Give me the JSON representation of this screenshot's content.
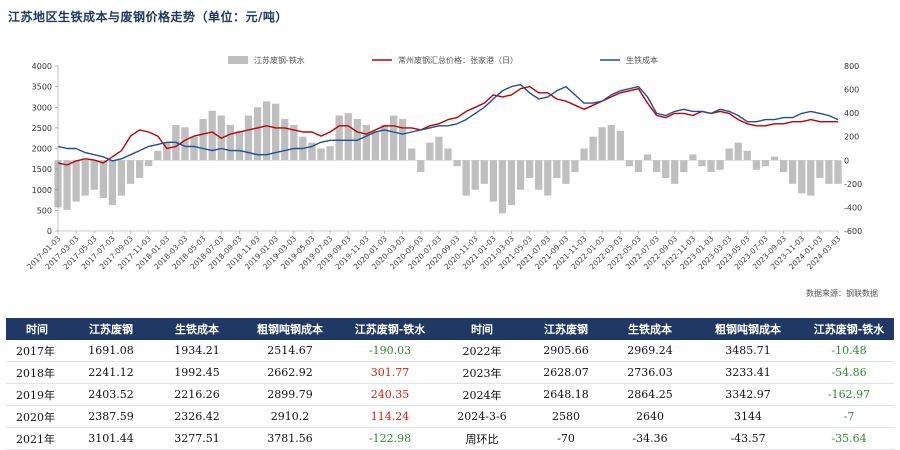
{
  "title": "江苏地区生铁成本与废钢价格走势（单位：元/吨）",
  "source": "数据来源：钢联数据",
  "chart_data": {
    "type": "bar+line",
    "legend": [
      "江苏废钢-铁水",
      "常州废钢汇总价格：张家港（日）",
      "生铁成本"
    ],
    "legend_placement": "top",
    "y_left_ticks": [
      "0",
      "500",
      "1000",
      "1500",
      "2000",
      "2500",
      "3000",
      "3500",
      "4000"
    ],
    "y_left_range": [
      0,
      4000
    ],
    "y_right_ticks": [
      "-600",
      "-400",
      "-200",
      "0",
      "200",
      "400",
      "600",
      "800"
    ],
    "y_right_range": [
      -600,
      800
    ],
    "x_ticks": [
      "2017-01-03",
      "2017-03-03",
      "2017-05-03",
      "2017-07-03",
      "2017-09-03",
      "2017-11-03",
      "2018-01-03",
      "2018-03-03",
      "2018-05-03",
      "2018-07-03",
      "2018-09-03",
      "2018-11-03",
      "2019-01-03",
      "2019-03-03",
      "2019-05-03",
      "2019-07-03",
      "2019-09-03",
      "2019-11-03",
      "2020-01-03",
      "2020-03-03",
      "2020-05-03",
      "2020-07-03",
      "2020-09-03",
      "2020-11-03",
      "2021-01-03",
      "2021-03-03",
      "2021-05-03",
      "2021-07-03",
      "2021-09-03",
      "2021-11-03",
      "2022-01-03",
      "2022-03-03",
      "2022-05-03",
      "2022-07-03",
      "2022-09-03",
      "2022-11-03",
      "2023-01-03",
      "2023-03-03",
      "2023-05-03",
      "2023-07-03",
      "2023-09-03",
      "2023-11-03",
      "2024-01-03",
      "2024-03-03"
    ],
    "x_months": [
      0,
      1,
      2,
      3,
      4,
      5,
      6,
      7,
      8,
      9,
      10,
      11,
      12,
      13,
      14,
      15,
      16,
      17,
      18,
      19,
      20,
      21,
      22,
      23,
      24,
      25,
      26,
      27,
      28,
      29,
      30,
      31,
      32,
      33,
      34,
      35,
      36,
      37,
      38,
      39,
      40,
      41,
      42,
      43,
      44,
      45,
      46,
      47,
      48,
      49,
      50,
      51,
      52,
      53,
      54,
      55,
      56,
      57,
      58,
      59,
      60,
      61,
      62,
      63,
      64,
      65,
      66,
      67,
      68,
      69,
      70,
      71,
      72,
      73,
      74,
      75,
      76,
      77,
      78,
      79,
      80,
      81,
      82,
      83,
      84,
      85,
      86
    ],
    "series": [
      {
        "name": "江苏废钢-铁水",
        "type": "bar",
        "axis": "right",
        "color": "#bfbfbf",
        "values": [
          -400,
          -420,
          -350,
          -300,
          -250,
          -320,
          -380,
          -300,
          -200,
          -150,
          -50,
          80,
          150,
          300,
          280,
          200,
          350,
          420,
          380,
          300,
          250,
          380,
          450,
          500,
          480,
          350,
          300,
          200,
          150,
          100,
          120,
          380,
          400,
          350,
          300,
          250,
          300,
          380,
          350,
          100,
          -100,
          150,
          200,
          100,
          -50,
          -300,
          -250,
          -200,
          -350,
          -450,
          -380,
          -250,
          -150,
          -250,
          -300,
          -150,
          -200,
          -100,
          100,
          200,
          280,
          300,
          250,
          -50,
          -100,
          50,
          -100,
          -150,
          -200,
          -100,
          50,
          -50,
          -100,
          -80,
          100,
          150,
          80,
          -80,
          -50,
          30,
          -100,
          -200,
          -280,
          -300,
          -150,
          -200,
          -200
        ]
      },
      {
        "name": "常州废钢汇总价格：张家港（日）",
        "type": "line",
        "axis": "left",
        "color": "#c00000",
        "values": [
          1650,
          1600,
          1700,
          1750,
          1720,
          1650,
          1800,
          1950,
          2300,
          2450,
          2400,
          2300,
          2000,
          2050,
          2200,
          2300,
          2350,
          2400,
          2250,
          2350,
          2400,
          2450,
          2500,
          2550,
          2500,
          2500,
          2450,
          2400,
          2400,
          2300,
          2400,
          2550,
          2550,
          2400,
          2350,
          2450,
          2550,
          2550,
          2500,
          2500,
          2450,
          2550,
          2600,
          2700,
          2750,
          2900,
          3000,
          3100,
          3300,
          3250,
          3300,
          3450,
          3500,
          3350,
          3350,
          3200,
          3150,
          3050,
          2950,
          3050,
          3150,
          3250,
          3350,
          3400,
          3450,
          3100,
          2800,
          2750,
          2850,
          2850,
          2800,
          2900,
          2850,
          2900,
          2850,
          2700,
          2600,
          2550,
          2550,
          2600,
          2600,
          2650,
          2650,
          2700,
          2650,
          2650,
          2650
        ]
      },
      {
        "name": "生铁成本",
        "type": "line",
        "axis": "left",
        "color": "#1f4e9c",
        "values": [
          2050,
          2000,
          2000,
          1900,
          1850,
          1800,
          1700,
          1750,
          1850,
          1950,
          2050,
          2100,
          2150,
          2150,
          2050,
          2050,
          2000,
          1950,
          2000,
          1950,
          1950,
          1900,
          1850,
          1850,
          1900,
          1950,
          2000,
          2000,
          2050,
          2150,
          2200,
          2200,
          2200,
          2200,
          2300,
          2400,
          2450,
          2400,
          2350,
          2400,
          2450,
          2500,
          2550,
          2550,
          2600,
          2700,
          2850,
          3000,
          3200,
          3400,
          3500,
          3550,
          3350,
          3200,
          3250,
          3400,
          3500,
          3300,
          3100,
          3100,
          3150,
          3300,
          3400,
          3450,
          3500,
          3250,
          2850,
          2800,
          2900,
          2950,
          2900,
          2900,
          2850,
          2950,
          2900,
          2800,
          2650,
          2650,
          2700,
          2700,
          2750,
          2750,
          2850,
          2900,
          2850,
          2800,
          2700
        ]
      }
    ]
  },
  "table": {
    "headers": [
      "时间",
      "江苏废钢",
      "生铁成本",
      "粗钢吨钢成本",
      "江苏废钢-铁水",
      "时间",
      "江苏废钢",
      "生铁成本",
      "粗钢吨钢成本",
      "江苏废钢-铁水"
    ],
    "rows": [
      [
        "2017年",
        "1691.08",
        "1934.21",
        "2514.67",
        "-190.03",
        "2022年",
        "2905.66",
        "2969.24",
        "3485.71",
        "-10.48"
      ],
      [
        "2018年",
        "2241.12",
        "1992.45",
        "2662.92",
        "301.77",
        "2023年",
        "2628.07",
        "2736.03",
        "3233.41",
        "-54.86"
      ],
      [
        "2019年",
        "2403.52",
        "2216.26",
        "2899.79",
        "240.35",
        "2024年",
        "2648.18",
        "2864.25",
        "3342.97",
        "-162.97"
      ],
      [
        "2020年",
        "2387.59",
        "2326.42",
        "2910.2",
        "114.24",
        "2024-3-6",
        "2580",
        "2640",
        "3144",
        "-7"
      ],
      [
        "2021年",
        "3101.44",
        "3277.51",
        "3781.56",
        "-122.98",
        "周环比",
        "-70",
        "-34.36",
        "-43.57",
        "-35.64"
      ]
    ]
  }
}
